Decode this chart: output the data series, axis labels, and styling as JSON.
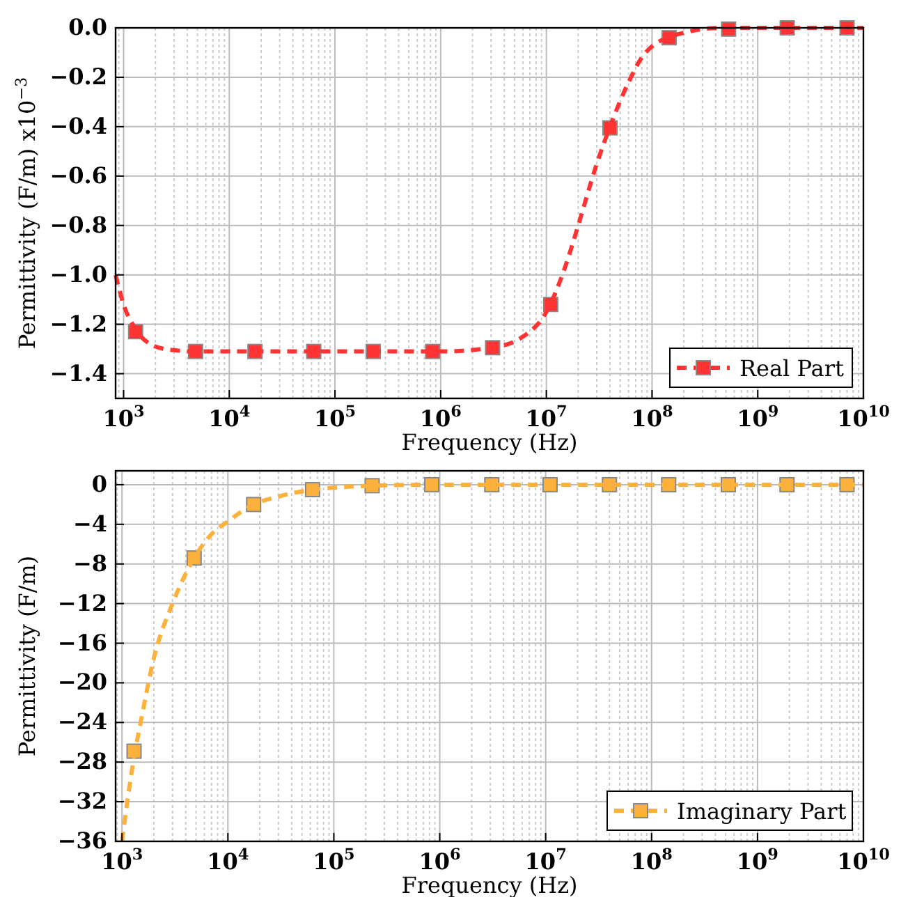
{
  "chart_data": [
    {
      "type": "line",
      "xlabel": "Frequency (Hz)",
      "ylabel": "Permittivity (F/m) x10$^{−3}$",
      "log": "x",
      "grid": true,
      "legend": "bottom right",
      "xlim": [
        840,
        10000000000
      ],
      "xticks": [
        {
          "value": 1000,
          "label": "10$^{3}$"
        },
        {
          "value": 10000,
          "label": "10$^{4}$"
        },
        {
          "value": 100000,
          "label": "10$^{5}$"
        },
        {
          "value": 1000000,
          "label": "10$^{6}$"
        },
        {
          "value": 10000000,
          "label": "10$^{7}$"
        },
        {
          "value": 100000000,
          "label": "10$^{8}$"
        },
        {
          "value": 1000000000,
          "label": "10$^{9}$"
        },
        {
          "value": 10000000000,
          "label": "10$^{10}$"
        }
      ],
      "ylim": [
        -1.5,
        0
      ],
      "yticks": [
        {
          "value": -1.4,
          "label": "−1.4"
        },
        {
          "value": -1.2,
          "label": "−1.2"
        },
        {
          "value": -1.0,
          "label": "−1.0"
        },
        {
          "value": -0.8,
          "label": "−0.8"
        },
        {
          "value": -0.6,
          "label": "−0.6"
        },
        {
          "value": -0.4,
          "label": "−0.4"
        },
        {
          "value": -0.2,
          "label": "−0.2"
        },
        {
          "value": 0,
          "label": "0.0"
        }
      ],
      "series": [
        {
          "name": "Real Part",
          "type": "scatter",
          "marker": "square",
          "color": "#ff3333",
          "x": [
            1300,
            4800,
            17500,
            63000,
            230000,
            840000,
            3100000,
            11000000,
            40000000,
            145000000,
            530000000,
            1900000000,
            7000000000
          ],
          "values": [
            -1.23,
            -1.31,
            -1.31,
            -1.31,
            -1.31,
            -1.31,
            -1.295,
            -1.12,
            -0.405,
            -0.04,
            -0.005,
            0,
            0
          ]
        },
        {
          "type": "line",
          "marker": "none",
          "line_style": "dashed",
          "color": "#ff3333",
          "x": [
            840,
            1000,
            1300,
            2000,
            3000,
            5000,
            1000000,
            3000000,
            6000000,
            10000000,
            15000000,
            20000000,
            30000000,
            40000000,
            60000000,
            80000000,
            100000000,
            150000000,
            200000000,
            300000000,
            500000000,
            10000000000
          ],
          "values": [
            -1.0,
            -1.12,
            -1.22,
            -1.29,
            -1.305,
            -1.31,
            -1.31,
            -1.295,
            -1.25,
            -1.15,
            -0.97,
            -0.8,
            -0.55,
            -0.4,
            -0.22,
            -0.12,
            -0.075,
            -0.035,
            -0.02,
            -0.005,
            0,
            0
          ]
        }
      ]
    },
    {
      "type": "line",
      "xlabel": "Frequency (Hz)",
      "ylabel": "Permittivity (F/m)",
      "log": "x",
      "grid": true,
      "legend": "bottom right",
      "xlim": [
        870,
        10000000000
      ],
      "xticks": [
        {
          "value": 1000,
          "label": "10$^{3}$"
        },
        {
          "value": 10000,
          "label": "10$^{4}$"
        },
        {
          "value": 100000,
          "label": "10$^{5}$"
        },
        {
          "value": 1000000,
          "label": "10$^{6}$"
        },
        {
          "value": 10000000,
          "label": "10$^{7}$"
        },
        {
          "value": 100000000,
          "label": "10$^{8}$"
        },
        {
          "value": 1000000000,
          "label": "10$^{9}$"
        },
        {
          "value": 10000000000,
          "label": "10$^{10}$"
        }
      ],
      "ylim": [
        -36,
        1.4
      ],
      "yticks": [
        {
          "value": -36,
          "label": "−36"
        },
        {
          "value": -32,
          "label": "−32"
        },
        {
          "value": -28,
          "label": "−28"
        },
        {
          "value": -24,
          "label": "−24"
        },
        {
          "value": -20,
          "label": "−20"
        },
        {
          "value": -16,
          "label": "−16"
        },
        {
          "value": -12,
          "label": "−12"
        },
        {
          "value": -8,
          "label": "−8"
        },
        {
          "value": -4,
          "label": "−4"
        },
        {
          "value": 0,
          "label": "0"
        }
      ],
      "series": [
        {
          "name": "Imaginary Part",
          "type": "scatter",
          "marker": "square",
          "color": "#fbb13c",
          "x": [
            1300,
            4800,
            17500,
            63000,
            230000,
            840000,
            3100000,
            11000000,
            40000000,
            145000000,
            530000000,
            1900000000,
            7000000000
          ],
          "values": [
            -26.9,
            -7.4,
            -2.0,
            -0.5,
            -0.1,
            0,
            0,
            0,
            0,
            0,
            0,
            0,
            0
          ]
        },
        {
          "type": "line",
          "marker": "none",
          "line_style": "dashed",
          "color": "#fbb13c",
          "x": [
            1000,
            1300,
            1500,
            2000,
            3000,
            4800,
            7000,
            10000,
            17500,
            30000,
            63000,
            100000,
            230000,
            1000000,
            10000000000
          ],
          "values": [
            -36,
            -27.5,
            -24,
            -17.5,
            -12,
            -7.4,
            -5,
            -3.7,
            -2.0,
            -1.2,
            -0.5,
            -0.3,
            -0.1,
            0,
            0
          ]
        }
      ]
    }
  ]
}
